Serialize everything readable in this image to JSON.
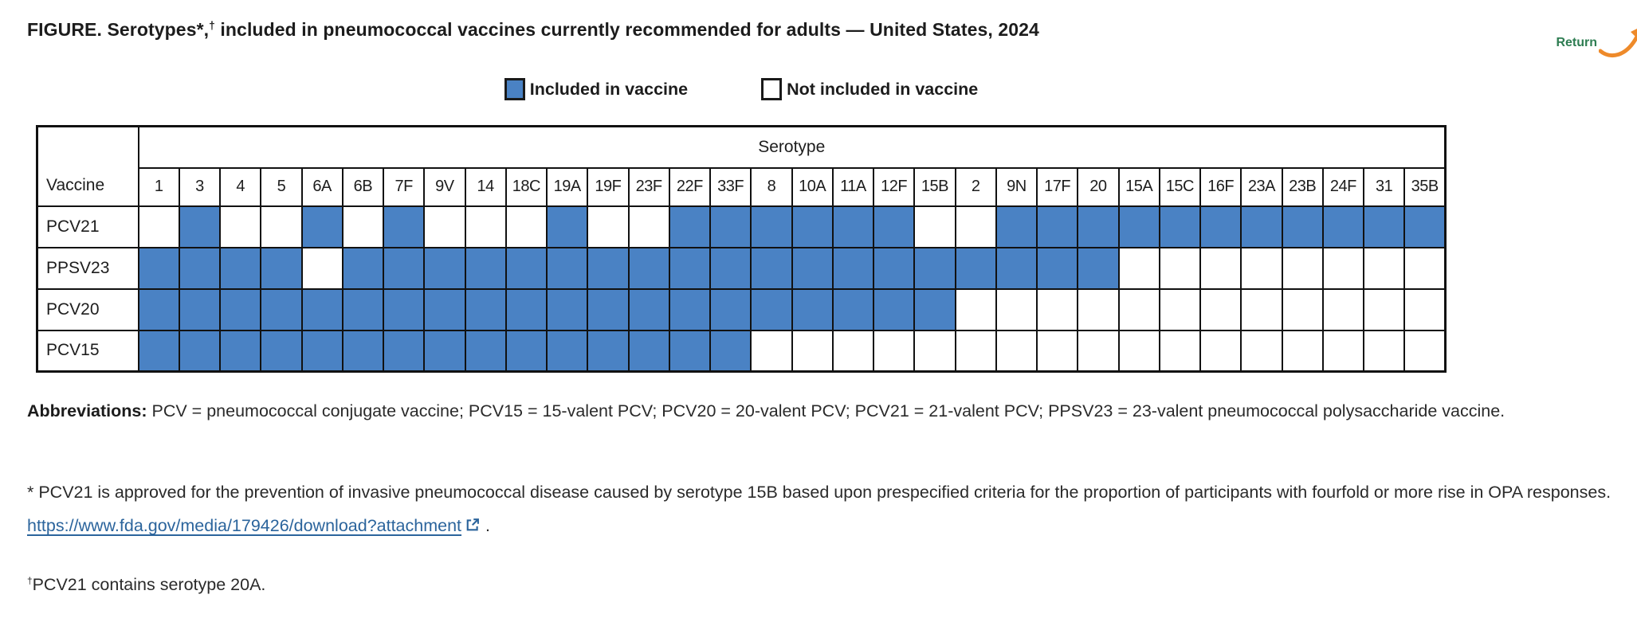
{
  "page": {
    "title_part1": "FIGURE. Serotypes*,",
    "title_dagger": "†",
    "title_part2": " included in pneumococcal vaccines currently recommended for adults — United States, 2024",
    "return_label": "Return"
  },
  "legend": {
    "included": "Included in vaccine",
    "not_included": "Not included in vaccine"
  },
  "table": {
    "corner_header": "Vaccine",
    "group_header": "Serotype"
  },
  "chart_data": {
    "type": "table",
    "title": "FIGURE. Serotypes*,† included in pneumococcal vaccines currently recommended for adults — United States, 2024",
    "legend": [
      "Included in vaccine",
      "Not included in vaccine"
    ],
    "included_color": "#4a82c4",
    "not_included_color": "#ffffff",
    "columns": [
      "1",
      "3",
      "4",
      "5",
      "6A",
      "6B",
      "7F",
      "9V",
      "14",
      "18C",
      "19A",
      "19F",
      "23F",
      "22F",
      "33F",
      "8",
      "10A",
      "11A",
      "12F",
      "15B",
      "2",
      "9N",
      "17F",
      "20",
      "15A",
      "15C",
      "16F",
      "23A",
      "23B",
      "24F",
      "31",
      "35B"
    ],
    "row_labels": [
      "PCV21",
      "PPSV23",
      "PCV20",
      "PCV15"
    ],
    "matrix": [
      [
        0,
        1,
        0,
        0,
        1,
        0,
        1,
        0,
        0,
        0,
        1,
        0,
        0,
        1,
        1,
        1,
        1,
        1,
        1,
        0,
        0,
        1,
        1,
        1,
        1,
        1,
        1,
        1,
        1,
        1,
        1,
        1
      ],
      [
        1,
        1,
        1,
        1,
        0,
        1,
        1,
        1,
        1,
        1,
        1,
        1,
        1,
        1,
        1,
        1,
        1,
        1,
        1,
        1,
        1,
        1,
        1,
        1,
        0,
        0,
        0,
        0,
        0,
        0,
        0,
        0
      ],
      [
        1,
        1,
        1,
        1,
        1,
        1,
        1,
        1,
        1,
        1,
        1,
        1,
        1,
        1,
        1,
        1,
        1,
        1,
        1,
        1,
        0,
        0,
        0,
        0,
        0,
        0,
        0,
        0,
        0,
        0,
        0,
        0
      ],
      [
        1,
        1,
        1,
        1,
        1,
        1,
        1,
        1,
        1,
        1,
        1,
        1,
        1,
        1,
        1,
        0,
        0,
        0,
        0,
        0,
        0,
        0,
        0,
        0,
        0,
        0,
        0,
        0,
        0,
        0,
        0,
        0
      ]
    ]
  },
  "footnotes": {
    "abbreviations_label": "Abbreviations:",
    "abbreviations_text": " PCV = pneumococcal conjugate vaccine; PCV15 = 15-valent PCV; PCV20 = 20-valent PCV; PCV21 = 21-valent PCV; PPSV23 = 23-valent pneumococcal polysaccharide vaccine.",
    "asterisk_text": "* PCV21 is approved for the prevention of invasive pneumococcal disease caused by serotype 15B based upon prespecified criteria for the proportion of participants with fourfold or more rise in OPA responses. ",
    "asterisk_link": "https://www.fda.gov/media/179426/download?attachment",
    "asterisk_after_link": " .",
    "dagger_symbol": "†",
    "dagger_text": "PCV21 contains serotype 20A."
  },
  "colors": {
    "included_fill": "#4a82c4",
    "table_border": "#111111",
    "link_blue": "#2b649c",
    "return_green": "#2e7d52",
    "return_arrow_orange": "#ee8a2a"
  }
}
